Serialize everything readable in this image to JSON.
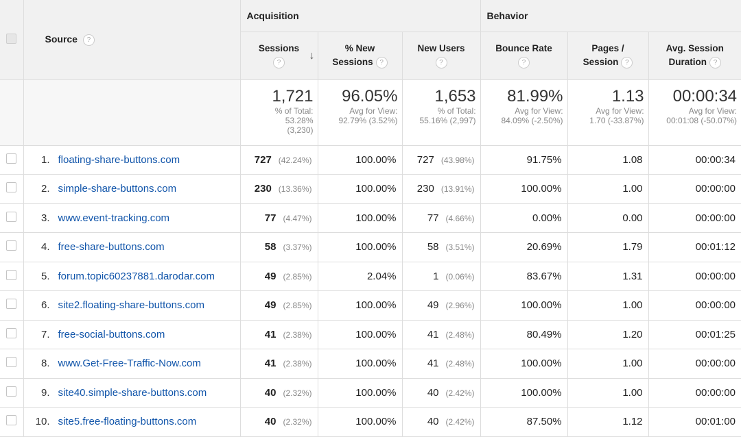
{
  "header": {
    "acquisition": "Acquisition",
    "behavior": "Behavior",
    "source": "Source",
    "sessions": "Sessions",
    "new_sessions_line1": "% New",
    "new_sessions_line2": "Sessions",
    "new_users": "New Users",
    "bounce_rate": "Bounce Rate",
    "pages_line1": "Pages /",
    "pages_line2": "Session",
    "duration_line1": "Avg. Session",
    "duration_line2": "Duration",
    "help_glyph": "?",
    "sort_glyph": "↓"
  },
  "totals": {
    "sessions": {
      "value": "1,721",
      "l1": "% of Total:",
      "l2": "53.28%",
      "l3": "(3,230)"
    },
    "new_sessions": {
      "value": "96.05%",
      "l1": "Avg for View:",
      "l2": "92.79% (3.52%)"
    },
    "new_users": {
      "value": "1,653",
      "l1": "% of Total:",
      "l2": "55.16% (2,997)"
    },
    "bounce_rate": {
      "value": "81.99%",
      "l1": "Avg for View:",
      "l2": "84.09% (-2.50%)"
    },
    "pages": {
      "value": "1.13",
      "l1": "Avg for View:",
      "l2": "1.70 (-33.87%)"
    },
    "duration": {
      "value": "00:00:34",
      "l1": "Avg for View:",
      "l2": "00:01:08 (-50.07%)"
    }
  },
  "rows": [
    {
      "n": "1.",
      "source": "floating-share-buttons.com",
      "sessions": "727",
      "sessions_pct": "(42.24%)",
      "new_sessions": "100.00%",
      "new_users": "727",
      "new_users_pct": "(43.98%)",
      "bounce": "91.75%",
      "pages": "1.08",
      "duration": "00:00:34"
    },
    {
      "n": "2.",
      "source": "simple-share-buttons.com",
      "sessions": "230",
      "sessions_pct": "(13.36%)",
      "new_sessions": "100.00%",
      "new_users": "230",
      "new_users_pct": "(13.91%)",
      "bounce": "100.00%",
      "pages": "1.00",
      "duration": "00:00:00"
    },
    {
      "n": "3.",
      "source": "www.event-tracking.com",
      "sessions": "77",
      "sessions_pct": "(4.47%)",
      "new_sessions": "100.00%",
      "new_users": "77",
      "new_users_pct": "(4.66%)",
      "bounce": "0.00%",
      "pages": "0.00",
      "duration": "00:00:00"
    },
    {
      "n": "4.",
      "source": "free-share-buttons.com",
      "sessions": "58",
      "sessions_pct": "(3.37%)",
      "new_sessions": "100.00%",
      "new_users": "58",
      "new_users_pct": "(3.51%)",
      "bounce": "20.69%",
      "pages": "1.79",
      "duration": "00:01:12"
    },
    {
      "n": "5.",
      "source": "forum.topic60237881.darodar.com",
      "sessions": "49",
      "sessions_pct": "(2.85%)",
      "new_sessions": "2.04%",
      "new_users": "1",
      "new_users_pct": "(0.06%)",
      "bounce": "83.67%",
      "pages": "1.31",
      "duration": "00:00:00"
    },
    {
      "n": "6.",
      "source": "site2.floating-share-buttons.com",
      "sessions": "49",
      "sessions_pct": "(2.85%)",
      "new_sessions": "100.00%",
      "new_users": "49",
      "new_users_pct": "(2.96%)",
      "bounce": "100.00%",
      "pages": "1.00",
      "duration": "00:00:00"
    },
    {
      "n": "7.",
      "source": "free-social-buttons.com",
      "sessions": "41",
      "sessions_pct": "(2.38%)",
      "new_sessions": "100.00%",
      "new_users": "41",
      "new_users_pct": "(2.48%)",
      "bounce": "80.49%",
      "pages": "1.20",
      "duration": "00:01:25"
    },
    {
      "n": "8.",
      "source": "www.Get-Free-Traffic-Now.com",
      "sessions": "41",
      "sessions_pct": "(2.38%)",
      "new_sessions": "100.00%",
      "new_users": "41",
      "new_users_pct": "(2.48%)",
      "bounce": "100.00%",
      "pages": "1.00",
      "duration": "00:00:00"
    },
    {
      "n": "9.",
      "source": "site40.simple-share-buttons.com",
      "sessions": "40",
      "sessions_pct": "(2.32%)",
      "new_sessions": "100.00%",
      "new_users": "40",
      "new_users_pct": "(2.42%)",
      "bounce": "100.00%",
      "pages": "1.00",
      "duration": "00:00:00"
    },
    {
      "n": "10.",
      "source": "site5.free-floating-buttons.com",
      "sessions": "40",
      "sessions_pct": "(2.32%)",
      "new_sessions": "100.00%",
      "new_users": "40",
      "new_users_pct": "(2.42%)",
      "bounce": "87.50%",
      "pages": "1.12",
      "duration": "00:01:00"
    }
  ]
}
